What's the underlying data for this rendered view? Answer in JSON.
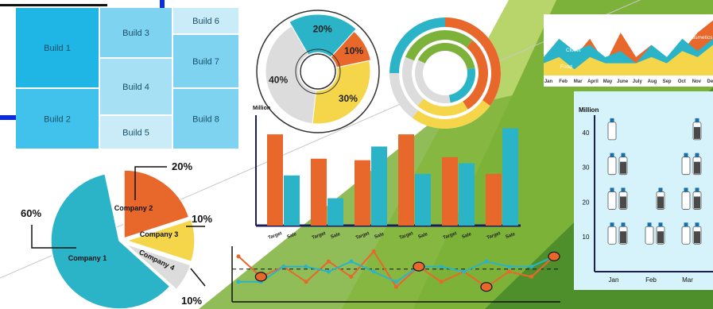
{
  "colors": {
    "orange": "#E8672A",
    "teal": "#2BB4C8",
    "yellow": "#F5D54A",
    "gray": "#DCDCDC",
    "lightgreen": "#B7D56A",
    "midgreen": "#7DB23A",
    "darkgreen": "#4E8F2B",
    "navy": "#1B1C5C",
    "blue": "#0A2BE6",
    "milk_fill": "#FFFFFF",
    "milk_dark": "#4A4A4A",
    "cap": "#1B6FA8"
  },
  "chart_data": [
    {
      "type": "treemap",
      "items": [
        {
          "label": "Build 1"
        },
        {
          "label": "Build 2"
        },
        {
          "label": "Build 3"
        },
        {
          "label": "Build 4"
        },
        {
          "label": "Build 5"
        },
        {
          "label": "Build 6"
        },
        {
          "label": "Build 7"
        },
        {
          "label": "Build 8"
        }
      ]
    },
    {
      "type": "pie",
      "labels": [
        "20%",
        "10%",
        "30%",
        "40%"
      ],
      "values": [
        20,
        10,
        30,
        40
      ],
      "colors": [
        "teal",
        "orange",
        "yellow",
        "gray"
      ]
    },
    {
      "type": "concentric-rings",
      "rings": [
        {
          "segments": [
            {
              "value": 35,
              "color": "orange"
            },
            {
              "value": 25,
              "color": "yellow"
            },
            {
              "value": 15,
              "color": "gray"
            },
            {
              "value": 25,
              "color": "teal"
            }
          ]
        },
        {
          "segments": [
            {
              "value": 30,
              "color": "orange"
            },
            {
              "value": 20,
              "color": "yellow"
            },
            {
              "value": 20,
              "color": "gray"
            },
            {
              "value": 30,
              "color": "midgreen"
            }
          ]
        },
        {
          "segments": [
            {
              "value": 25,
              "color": "teal"
            },
            {
              "value": 35,
              "color": "gray"
            },
            {
              "value": 40,
              "color": "midgreen"
            }
          ]
        }
      ]
    },
    {
      "type": "area",
      "categories": [
        "Jan",
        "Feb",
        "Mar",
        "April",
        "May",
        "June",
        "July",
        "Aug",
        "Sep",
        "Oct",
        "Nov",
        "Dec"
      ],
      "series": [
        {
          "name": "Cosmetics",
          "values": [
            2,
            5,
            3,
            6,
            2,
            7,
            3,
            5,
            2,
            4,
            7,
            9
          ],
          "color": "orange"
        },
        {
          "name": "Closet",
          "values": [
            3,
            6,
            4,
            5,
            3,
            4,
            2,
            5,
            3,
            6,
            4,
            6
          ],
          "color": "teal"
        },
        {
          "name": "Food",
          "values": [
            2,
            3,
            1,
            3,
            2,
            2,
            2,
            3,
            2,
            4,
            3,
            5
          ],
          "color": "yellow"
        }
      ]
    },
    {
      "type": "bar",
      "ylabel": "Million",
      "categories": [
        "Target",
        "Sale",
        "Target",
        "Sale",
        "Target",
        "Sale",
        "Target",
        "Sale",
        "Target",
        "Sale",
        "Target",
        "Sale"
      ],
      "values": [
        60,
        33,
        44,
        18,
        43,
        52,
        60,
        34,
        45,
        41,
        34,
        64
      ],
      "bar_colors": [
        "orange",
        "teal",
        "orange",
        "teal",
        "orange",
        "teal",
        "orange",
        "teal",
        "orange",
        "teal",
        "orange",
        "teal"
      ],
      "ylim": [
        0,
        70
      ]
    },
    {
      "type": "pie",
      "labels": [
        "Company 1",
        "Company 2",
        "Company 3",
        "Company 4"
      ],
      "callouts": [
        "60%",
        "20%",
        "10%",
        "10%"
      ],
      "values": [
        60,
        20,
        10,
        10
      ],
      "colors": [
        "teal",
        "orange",
        "yellow",
        "gray"
      ]
    },
    {
      "type": "line",
      "series": [
        {
          "values": [
            8,
            4,
            6,
            3,
            7,
            4,
            9,
            2,
            6,
            3,
            5,
            2,
            5,
            4,
            8
          ],
          "color": "orange"
        },
        {
          "values": [
            3,
            3,
            6,
            6,
            5,
            7,
            5,
            3,
            6,
            6,
            5,
            7,
            6,
            6,
            8
          ],
          "color": "teal"
        }
      ],
      "reference_line": 5.5
    },
    {
      "type": "pictograph",
      "ylabel": "Million",
      "yticks": [
        10,
        20,
        30,
        40
      ],
      "ylim": [
        0,
        45
      ],
      "categories": [
        "Jan",
        "Feb",
        "Mar"
      ],
      "values": [
        [
          40,
          30
        ],
        [
          10,
          20
        ],
        [
          30,
          40
        ]
      ]
    }
  ]
}
